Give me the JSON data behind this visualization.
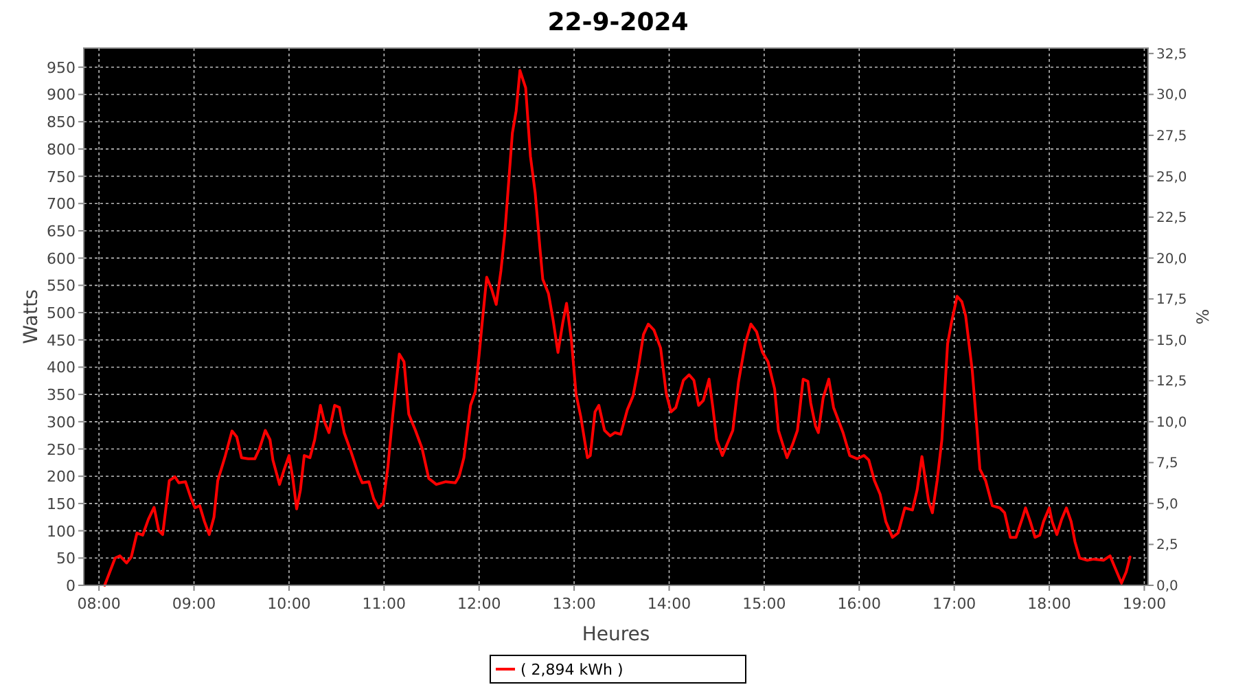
{
  "chart_data": {
    "type": "line",
    "title": "22-9-2024",
    "xlabel": "Heures",
    "ylabel": "Watts",
    "y2label": "%",
    "x": [
      8.06,
      8.17,
      8.22,
      8.29,
      8.34,
      8.4,
      8.46,
      8.52,
      8.58,
      8.63,
      8.67,
      8.74,
      8.8,
      8.84,
      8.91,
      8.97,
      9.01,
      9.06,
      9.11,
      9.16,
      9.21,
      9.25,
      9.33,
      9.4,
      9.45,
      9.5,
      9.57,
      9.64,
      9.69,
      9.75,
      9.8,
      9.83,
      9.9,
      9.95,
      10.0,
      10.04,
      10.08,
      10.12,
      10.16,
      10.22,
      10.27,
      10.33,
      10.37,
      10.42,
      10.48,
      10.53,
      10.58,
      10.65,
      10.73,
      10.77,
      10.84,
      10.89,
      10.94,
      10.99,
      11.04,
      11.09,
      11.16,
      11.21,
      11.26,
      11.33,
      11.4,
      11.47,
      11.55,
      11.65,
      11.75,
      11.79,
      11.84,
      11.91,
      11.96,
      12.0,
      12.03,
      12.08,
      12.13,
      12.18,
      12.23,
      12.27,
      12.35,
      12.39,
      12.43,
      12.49,
      12.54,
      12.59,
      12.64,
      12.67,
      12.73,
      12.78,
      12.83,
      12.88,
      12.92,
      12.97,
      13.02,
      13.07,
      13.14,
      13.17,
      13.22,
      13.26,
      13.32,
      13.38,
      13.43,
      13.49,
      13.56,
      13.62,
      13.67,
      13.73,
      13.78,
      13.84,
      13.91,
      13.97,
      14.02,
      14.07,
      14.15,
      14.21,
      14.26,
      14.31,
      14.36,
      14.42,
      14.46,
      14.5,
      14.56,
      14.61,
      14.67,
      14.73,
      14.8,
      14.86,
      14.92,
      14.98,
      15.04,
      15.11,
      15.15,
      15.24,
      15.3,
      15.35,
      15.41,
      15.46,
      15.49,
      15.54,
      15.57,
      15.62,
      15.68,
      15.73,
      15.83,
      15.9,
      15.98,
      16.05,
      16.1,
      16.16,
      16.22,
      16.28,
      16.35,
      16.41,
      16.48,
      16.56,
      16.61,
      16.66,
      16.73,
      16.77,
      16.82,
      16.87,
      16.93,
      16.97,
      17.03,
      17.08,
      17.12,
      17.19,
      17.24,
      17.27,
      17.33,
      17.4,
      17.48,
      17.53,
      17.59,
      17.65,
      17.72,
      17.75,
      17.8,
      17.85,
      17.9,
      17.94,
      18.0,
      18.03,
      18.08,
      18.13,
      18.18,
      18.23,
      18.27,
      18.32,
      18.4,
      18.47,
      18.57,
      18.64,
      18.69,
      18.76,
      18.81,
      18.85
    ],
    "series": [
      {
        "name": "( 2,894 kWh )",
        "color": "#ff0000",
        "values": [
          0,
          50,
          54,
          41,
          52,
          96,
          92,
          121,
          143,
          100,
          93,
          192,
          199,
          188,
          190,
          159,
          142,
          146,
          117,
          93,
          125,
          192,
          238,
          283,
          272,
          234,
          232,
          232,
          251,
          284,
          267,
          230,
          185,
          213,
          238,
          196,
          140,
          175,
          238,
          234,
          267,
          330,
          301,
          280,
          330,
          326,
          280,
          246,
          204,
          188,
          190,
          159,
          142,
          150,
          217,
          309,
          424,
          410,
          314,
          284,
          251,
          196,
          185,
          190,
          188,
          200,
          234,
          330,
          355,
          422,
          477,
          565,
          544,
          515,
          577,
          644,
          829,
          870,
          944,
          912,
          787,
          720,
          619,
          561,
          535,
          485,
          427,
          481,
          517,
          452,
          351,
          309,
          234,
          238,
          318,
          330,
          284,
          274,
          280,
          277,
          322,
          347,
          393,
          460,
          479,
          468,
          435,
          351,
          318,
          326,
          376,
          386,
          376,
          330,
          339,
          378,
          326,
          267,
          238,
          259,
          284,
          373,
          443,
          479,
          465,
          428,
          410,
          360,
          284,
          234,
          259,
          284,
          378,
          374,
          334,
          292,
          280,
          343,
          378,
          326,
          280,
          238,
          232,
          238,
          230,
          192,
          167,
          117,
          88,
          96,
          142,
          138,
          175,
          236,
          154,
          133,
          192,
          267,
          443,
          481,
          530,
          520,
          494,
          393,
          284,
          213,
          192,
          146,
          142,
          133,
          88,
          88,
          125,
          142,
          117,
          88,
          92,
          117,
          142,
          117,
          93,
          121,
          142,
          117,
          80,
          50,
          46,
          48,
          46,
          54,
          33,
          4,
          25,
          52
        ]
      }
    ],
    "xlim": [
      7.84,
      19.04
    ],
    "ylim": [
      0,
      985
    ],
    "y2lim": [
      0,
      32.83
    ],
    "xticks": [
      {
        "value": 8,
        "label": "08:00"
      },
      {
        "value": 9,
        "label": "09:00"
      },
      {
        "value": 10,
        "label": "10:00"
      },
      {
        "value": 11,
        "label": "11:00"
      },
      {
        "value": 12,
        "label": "12:00"
      },
      {
        "value": 13,
        "label": "13:00"
      },
      {
        "value": 14,
        "label": "14:00"
      },
      {
        "value": 15,
        "label": "15:00"
      },
      {
        "value": 16,
        "label": "16:00"
      },
      {
        "value": 17,
        "label": "17:00"
      },
      {
        "value": 18,
        "label": "18:00"
      },
      {
        "value": 19,
        "label": "19:00"
      }
    ],
    "yticks": [
      0,
      50,
      100,
      150,
      200,
      250,
      300,
      350,
      400,
      450,
      500,
      550,
      600,
      650,
      700,
      750,
      800,
      850,
      900,
      950
    ],
    "y2ticks": [
      {
        "value": 0,
        "label": "0,0"
      },
      {
        "value": 2.5,
        "label": "2,5"
      },
      {
        "value": 5,
        "label": "5,0"
      },
      {
        "value": 7.5,
        "label": "7,5"
      },
      {
        "value": 10,
        "label": "10,0"
      },
      {
        "value": 12.5,
        "label": "12,5"
      },
      {
        "value": 15,
        "label": "15,0"
      },
      {
        "value": 17.5,
        "label": "17,5"
      },
      {
        "value": 20,
        "label": "20,0"
      },
      {
        "value": 22.5,
        "label": "22,5"
      },
      {
        "value": 25,
        "label": "25,0"
      },
      {
        "value": 27.5,
        "label": "27,5"
      },
      {
        "value": 30,
        "label": "30,0"
      },
      {
        "value": 32.5,
        "label": "32,5"
      }
    ],
    "grid": true,
    "legend": "bottom",
    "marker": "none",
    "line_style": "solid"
  }
}
